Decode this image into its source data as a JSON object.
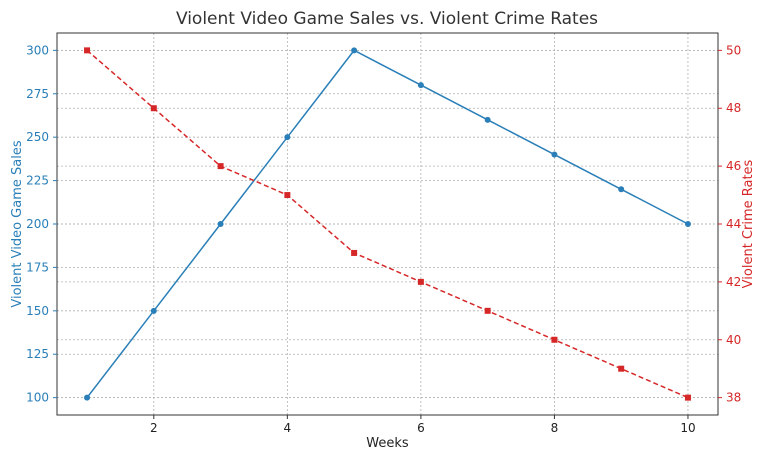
{
  "chart_data": {
    "type": "line",
    "title": "Violent Video Game Sales vs. Violent Crime Rates",
    "xlabel": "Weeks",
    "x": [
      1,
      2,
      3,
      4,
      5,
      6,
      7,
      8,
      9,
      10
    ],
    "xlim": [
      0.55,
      10.45
    ],
    "x_ticks": [
      2,
      4,
      6,
      8,
      10
    ],
    "grid": true,
    "series": [
      {
        "name": "Violent Video Game Sales",
        "axis": "left",
        "color": "#2a7fb8",
        "line_style": "solid",
        "marker": "circle",
        "values": [
          100,
          150,
          200,
          250,
          300,
          280,
          260,
          240,
          220,
          200
        ]
      },
      {
        "name": "Violent Crime Rates",
        "axis": "right",
        "color": "#d62728",
        "line_style": "dashed",
        "marker": "square",
        "values": [
          50,
          48,
          46,
          45,
          43,
          42,
          41,
          40,
          39,
          38
        ]
      }
    ],
    "y_left": {
      "label": "Violent Video Game Sales",
      "ylim": [
        90,
        310
      ],
      "ticks": [
        100,
        125,
        150,
        175,
        200,
        225,
        250,
        275,
        300
      ],
      "color": "#2a7fb8"
    },
    "y_right": {
      "label": "Violent Crime Rates",
      "ylim": [
        37.4,
        50.6
      ],
      "ticks": [
        38,
        40,
        42,
        44,
        46,
        48,
        50
      ],
      "color": "#d62728"
    }
  }
}
